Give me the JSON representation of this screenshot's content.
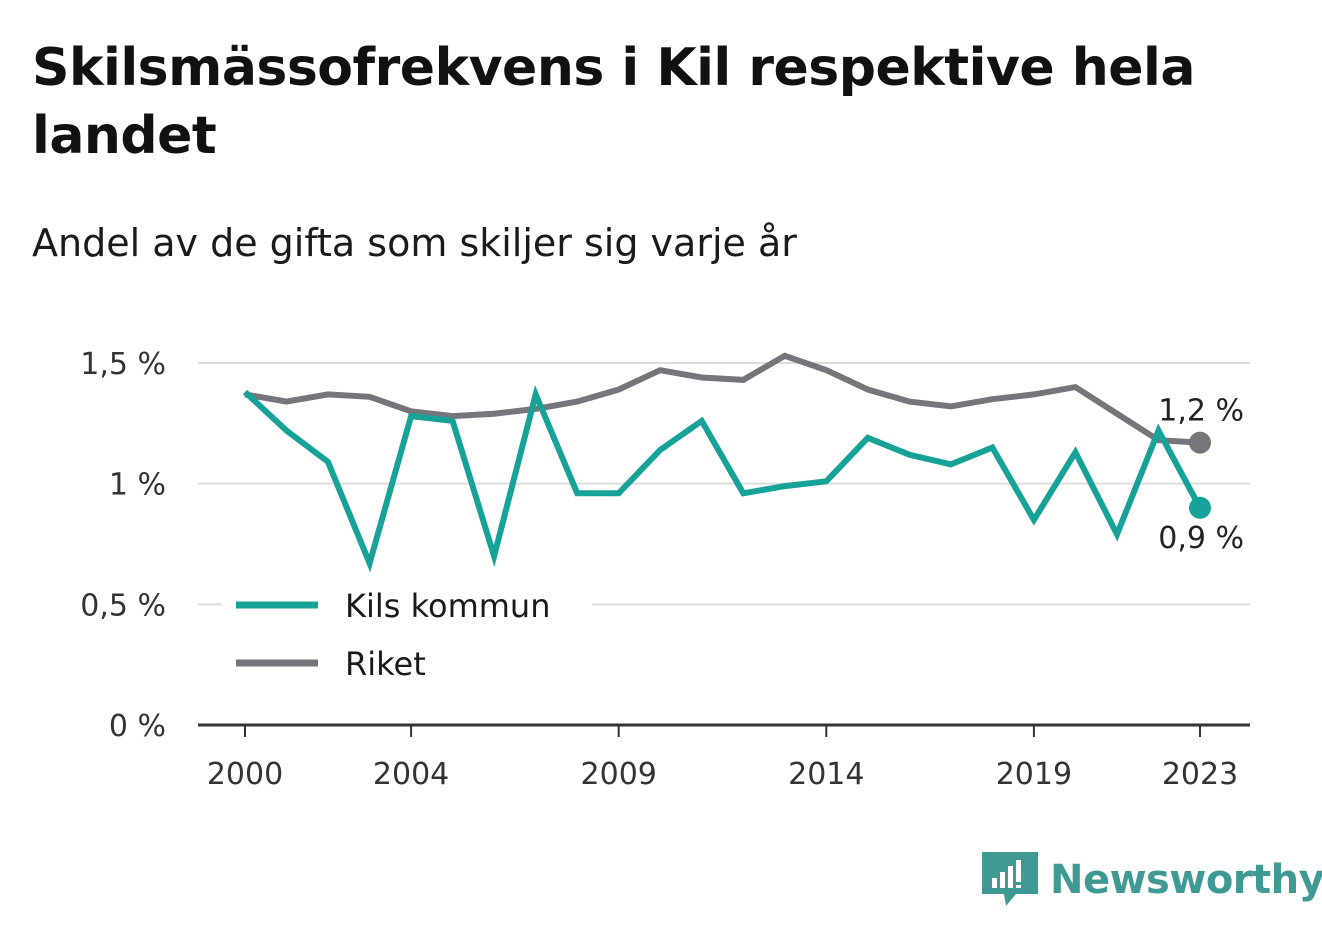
{
  "title": "Skilsmässofrekvens i Kil respektive hela landet",
  "subtitle": "Andel av de gifta som skiljer sig varje år",
  "brand": "Newsworthy",
  "colors": {
    "kil": "#17a298",
    "riket": "#76757c",
    "grid": "#dedede",
    "axis": "#333333",
    "brand": "#3f9a93"
  },
  "chart_data": {
    "type": "line",
    "x": [
      2000,
      2001,
      2002,
      2003,
      2004,
      2005,
      2006,
      2007,
      2008,
      2009,
      2010,
      2011,
      2012,
      2013,
      2014,
      2015,
      2016,
      2017,
      2018,
      2019,
      2020,
      2021,
      2022,
      2023
    ],
    "x_ticks": [
      "2000",
      "2004",
      "2009",
      "2014",
      "2019",
      "2023"
    ],
    "y_ticks": [
      "0 %",
      "0,5 %",
      "1 %",
      "1,5 %"
    ],
    "ylim": [
      0,
      1.5
    ],
    "grid": true,
    "legend_position": "bottom-left",
    "series": [
      {
        "name": "Kils kommun",
        "color": "#17a298",
        "end_label": "0,9 %",
        "values": [
          1.38,
          1.22,
          1.09,
          0.67,
          1.28,
          1.26,
          0.7,
          1.37,
          0.96,
          0.96,
          1.14,
          1.26,
          0.96,
          0.99,
          1.01,
          1.19,
          1.12,
          1.08,
          1.15,
          0.85,
          1.13,
          0.79,
          1.22,
          0.9
        ]
      },
      {
        "name": "Riket",
        "color": "#76757c",
        "end_label": "1,2 %",
        "values": [
          1.37,
          1.34,
          1.37,
          1.36,
          1.3,
          1.28,
          1.29,
          1.31,
          1.34,
          1.39,
          1.47,
          1.44,
          1.43,
          1.53,
          1.47,
          1.39,
          1.34,
          1.32,
          1.35,
          1.37,
          1.4,
          1.29,
          1.18,
          1.17
        ]
      }
    ]
  }
}
